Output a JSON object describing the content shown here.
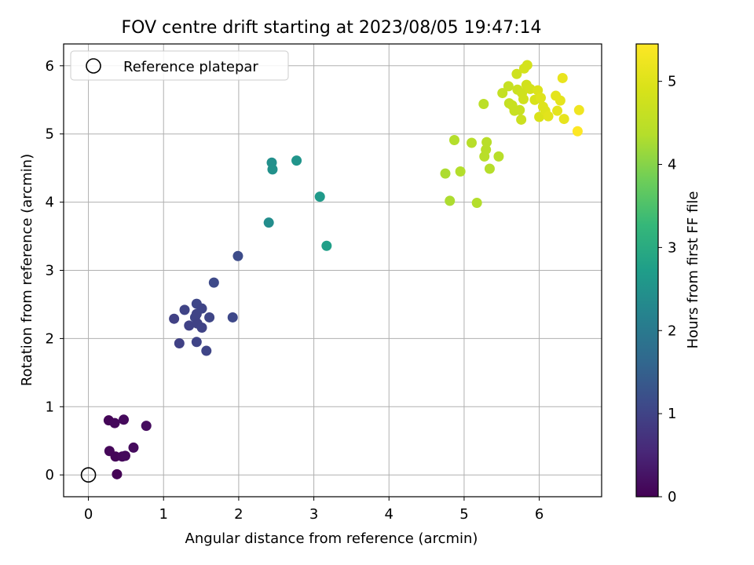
{
  "chart_data": {
    "type": "scatter",
    "title": "FOV centre drift starting at 2023/08/05 19:47:14",
    "xlabel": "Angular distance from reference (arcmin)",
    "ylabel": "Rotation from reference (arcmin)",
    "xlim": [
      -0.33,
      6.83
    ],
    "ylim": [
      -0.32,
      6.32
    ],
    "xticks": [
      0,
      1,
      2,
      3,
      4,
      5,
      6
    ],
    "yticks": [
      0,
      1,
      2,
      3,
      4,
      5,
      6
    ],
    "grid": true,
    "legend": {
      "placement": "top-left",
      "entries": [
        "Reference platepar"
      ]
    },
    "reference_point": {
      "label": "Reference platepar",
      "x": 0,
      "y": 0
    },
    "colorbar": {
      "label": "Hours from first FF file",
      "colormap": "viridis",
      "range": [
        0,
        5.45
      ],
      "ticks": [
        0,
        1,
        2,
        3,
        4,
        5
      ]
    },
    "series": [
      {
        "points": [
          {
            "x": 0.27,
            "y": 0.8,
            "c": 0.05
          },
          {
            "x": 0.35,
            "y": 0.76,
            "c": 0.1
          },
          {
            "x": 0.47,
            "y": 0.81,
            "c": 0.12
          },
          {
            "x": 0.77,
            "y": 0.72,
            "c": 0.15
          },
          {
            "x": 0.28,
            "y": 0.35,
            "c": 0.08
          },
          {
            "x": 0.36,
            "y": 0.27,
            "c": 0.06
          },
          {
            "x": 0.45,
            "y": 0.27,
            "c": 0.09
          },
          {
            "x": 0.49,
            "y": 0.28,
            "c": 0.11
          },
          {
            "x": 0.6,
            "y": 0.4,
            "c": 0.14
          },
          {
            "x": 0.38,
            "y": 0.01,
            "c": 0.02
          },
          {
            "x": 1.14,
            "y": 2.29,
            "c": 0.95
          },
          {
            "x": 1.28,
            "y": 2.42,
            "c": 1.0
          },
          {
            "x": 1.34,
            "y": 2.19,
            "c": 0.98
          },
          {
            "x": 1.42,
            "y": 2.31,
            "c": 1.02
          },
          {
            "x": 1.44,
            "y": 2.51,
            "c": 1.05
          },
          {
            "x": 1.44,
            "y": 2.36,
            "c": 1.0
          },
          {
            "x": 1.45,
            "y": 2.22,
            "c": 0.97
          },
          {
            "x": 1.51,
            "y": 2.44,
            "c": 1.03
          },
          {
            "x": 1.51,
            "y": 2.16,
            "c": 0.99
          },
          {
            "x": 1.61,
            "y": 2.31,
            "c": 1.04
          },
          {
            "x": 1.21,
            "y": 1.93,
            "c": 0.96
          },
          {
            "x": 1.44,
            "y": 1.95,
            "c": 1.01
          },
          {
            "x": 1.57,
            "y": 1.82,
            "c": 1.02
          },
          {
            "x": 1.67,
            "y": 2.82,
            "c": 1.1
          },
          {
            "x": 1.92,
            "y": 2.31,
            "c": 1.08
          },
          {
            "x": 1.99,
            "y": 3.21,
            "c": 1.15
          },
          {
            "x": 2.44,
            "y": 4.58,
            "c": 2.45
          },
          {
            "x": 2.45,
            "y": 4.48,
            "c": 2.48
          },
          {
            "x": 2.77,
            "y": 4.61,
            "c": 2.55
          },
          {
            "x": 3.08,
            "y": 4.08,
            "c": 2.65
          },
          {
            "x": 2.4,
            "y": 3.7,
            "c": 2.4
          },
          {
            "x": 3.17,
            "y": 3.36,
            "c": 2.75
          },
          {
            "x": 4.87,
            "y": 4.91,
            "c": 4.35
          },
          {
            "x": 4.75,
            "y": 4.42,
            "c": 4.3
          },
          {
            "x": 4.95,
            "y": 4.45,
            "c": 4.35
          },
          {
            "x": 5.1,
            "y": 4.87,
            "c": 4.4
          },
          {
            "x": 5.27,
            "y": 4.67,
            "c": 4.4
          },
          {
            "x": 5.29,
            "y": 4.77,
            "c": 4.42
          },
          {
            "x": 5.3,
            "y": 4.88,
            "c": 4.42
          },
          {
            "x": 5.34,
            "y": 4.49,
            "c": 4.38
          },
          {
            "x": 5.46,
            "y": 4.67,
            "c": 4.4
          },
          {
            "x": 4.81,
            "y": 4.02,
            "c": 4.3
          },
          {
            "x": 5.17,
            "y": 3.99,
            "c": 4.35
          },
          {
            "x": 5.26,
            "y": 5.44,
            "c": 4.45
          },
          {
            "x": 5.51,
            "y": 5.6,
            "c": 4.6
          },
          {
            "x": 5.59,
            "y": 5.7,
            "c": 4.62
          },
          {
            "x": 5.6,
            "y": 5.45,
            "c": 4.6
          },
          {
            "x": 5.64,
            "y": 5.42,
            "c": 4.65
          },
          {
            "x": 5.67,
            "y": 5.34,
            "c": 4.66
          },
          {
            "x": 5.7,
            "y": 5.88,
            "c": 4.75
          },
          {
            "x": 5.71,
            "y": 5.65,
            "c": 4.7
          },
          {
            "x": 5.74,
            "y": 5.35,
            "c": 4.66
          },
          {
            "x": 5.76,
            "y": 5.21,
            "c": 4.7
          },
          {
            "x": 5.77,
            "y": 5.6,
            "c": 4.75
          },
          {
            "x": 5.79,
            "y": 5.51,
            "c": 4.78
          },
          {
            "x": 5.8,
            "y": 5.96,
            "c": 4.85
          },
          {
            "x": 5.84,
            "y": 6.01,
            "c": 4.85
          },
          {
            "x": 5.83,
            "y": 5.72,
            "c": 4.8
          },
          {
            "x": 5.88,
            "y": 5.66,
            "c": 4.82
          },
          {
            "x": 5.94,
            "y": 5.5,
            "c": 4.9
          },
          {
            "x": 5.98,
            "y": 5.64,
            "c": 4.95
          },
          {
            "x": 6.0,
            "y": 5.25,
            "c": 4.92
          },
          {
            "x": 6.02,
            "y": 5.53,
            "c": 5.0
          },
          {
            "x": 6.05,
            "y": 5.4,
            "c": 5.0
          },
          {
            "x": 6.08,
            "y": 5.34,
            "c": 5.0
          },
          {
            "x": 6.12,
            "y": 5.26,
            "c": 5.05
          },
          {
            "x": 6.22,
            "y": 5.56,
            "c": 5.08
          },
          {
            "x": 6.24,
            "y": 5.34,
            "c": 5.08
          },
          {
            "x": 6.28,
            "y": 5.49,
            "c": 5.1
          },
          {
            "x": 6.31,
            "y": 5.82,
            "c": 5.15
          },
          {
            "x": 6.33,
            "y": 5.22,
            "c": 5.12
          },
          {
            "x": 6.53,
            "y": 5.35,
            "c": 5.25
          },
          {
            "x": 6.51,
            "y": 5.04,
            "c": 5.45
          }
        ]
      }
    ]
  }
}
